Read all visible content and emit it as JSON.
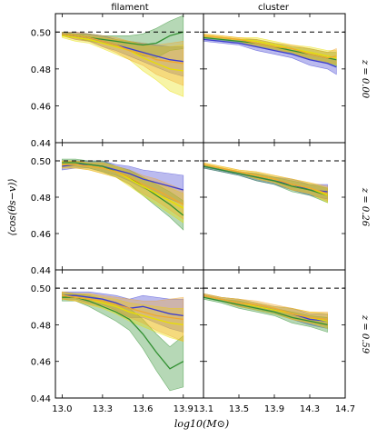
{
  "figure": {
    "column_titles": [
      "filament",
      "cluster"
    ],
    "row_labels": [
      "z = 0.00",
      "z = 0.26",
      "z = 0.59"
    ],
    "ylabel": "⟨cos(θs−v)⟩",
    "xlabel": "log10(M⊙)",
    "left_xticks": [
      "13.0",
      "13.3",
      "13.6",
      "13.9"
    ],
    "right_xticks": [
      "13.1",
      "13.5",
      "13.9",
      "14.3",
      "14.7"
    ],
    "yticks": [
      "0.44",
      "0.46",
      "0.48",
      "0.50"
    ],
    "colors": {
      "blue": "#3b3bd0",
      "green": "#2f8f2f",
      "yellow": "#e8e000",
      "orange": "#f0a830"
    }
  },
  "chart_data": [
    {
      "type": "line",
      "panel": "filament z=0.00",
      "xlim": [
        12.95,
        14.05
      ],
      "ylim": [
        0.44,
        0.51
      ],
      "reference_line": 0.5,
      "x": [
        13.0,
        13.1,
        13.2,
        13.3,
        13.4,
        13.5,
        13.6,
        13.7,
        13.8,
        13.9
      ],
      "series": [
        {
          "color": "blue",
          "values": [
            0.499,
            0.498,
            0.497,
            0.495,
            0.493,
            0.491,
            0.489,
            0.487,
            0.485,
            0.484
          ],
          "err": [
            0.001,
            0.002,
            0.002,
            0.003,
            0.003,
            0.004,
            0.005,
            0.006,
            0.007,
            0.008
          ]
        },
        {
          "color": "green",
          "values": [
            0.499,
            0.498,
            0.497,
            0.496,
            0.495,
            0.494,
            0.493,
            0.494,
            0.498,
            0.5
          ],
          "err": [
            0.001,
            0.001,
            0.002,
            0.002,
            0.003,
            0.004,
            0.006,
            0.008,
            0.008,
            0.009
          ]
        },
        {
          "color": "yellow",
          "values": [
            0.498,
            0.497,
            0.496,
            0.494,
            0.492,
            0.49,
            0.486,
            0.483,
            0.48,
            0.479
          ],
          "err": [
            0.001,
            0.002,
            0.002,
            0.003,
            0.004,
            0.005,
            0.007,
            0.009,
            0.012,
            0.014
          ]
        },
        {
          "color": "orange",
          "values": [
            0.499,
            0.498,
            0.497,
            0.495,
            0.493,
            0.49,
            0.488,
            0.485,
            0.484,
            0.483
          ],
          "err": [
            0.001,
            0.002,
            0.002,
            0.003,
            0.004,
            0.005,
            0.006,
            0.008,
            0.01,
            0.012
          ]
        }
      ]
    },
    {
      "type": "line",
      "panel": "cluster z=0.00",
      "xlim": [
        13.1,
        14.7
      ],
      "ylim": [
        0.44,
        0.51
      ],
      "reference_line": 0.5,
      "x": [
        13.1,
        13.3,
        13.5,
        13.7,
        13.9,
        14.1,
        14.3,
        14.5,
        14.6
      ],
      "series": [
        {
          "color": "blue",
          "values": [
            0.496,
            0.495,
            0.494,
            0.492,
            0.49,
            0.488,
            0.485,
            0.483,
            0.481
          ],
          "err": [
            0.001,
            0.001,
            0.001,
            0.002,
            0.002,
            0.002,
            0.003,
            0.003,
            0.004
          ]
        },
        {
          "color": "green",
          "values": [
            0.497,
            0.496,
            0.495,
            0.494,
            0.492,
            0.49,
            0.488,
            0.486,
            0.485
          ],
          "err": [
            0.001,
            0.001,
            0.001,
            0.002,
            0.002,
            0.002,
            0.003,
            0.003,
            0.004
          ]
        },
        {
          "color": "yellow",
          "values": [
            0.498,
            0.497,
            0.496,
            0.495,
            0.493,
            0.491,
            0.489,
            0.487,
            0.486
          ],
          "err": [
            0.001,
            0.001,
            0.001,
            0.002,
            0.002,
            0.002,
            0.003,
            0.003,
            0.004
          ]
        },
        {
          "color": "orange",
          "values": [
            0.498,
            0.497,
            0.496,
            0.494,
            0.492,
            0.491,
            0.488,
            0.486,
            0.487
          ],
          "err": [
            0.001,
            0.001,
            0.001,
            0.002,
            0.002,
            0.002,
            0.003,
            0.003,
            0.004
          ]
        }
      ]
    },
    {
      "type": "line",
      "panel": "filament z=0.26",
      "xlim": [
        12.95,
        14.05
      ],
      "ylim": [
        0.44,
        0.51
      ],
      "reference_line": 0.5,
      "x": [
        13.0,
        13.1,
        13.2,
        13.3,
        13.4,
        13.5,
        13.6,
        13.7,
        13.8,
        13.9
      ],
      "series": [
        {
          "color": "blue",
          "values": [
            0.497,
            0.498,
            0.498,
            0.497,
            0.495,
            0.493,
            0.49,
            0.488,
            0.486,
            0.484
          ],
          "err": [
            0.002,
            0.002,
            0.002,
            0.003,
            0.003,
            0.004,
            0.005,
            0.006,
            0.007,
            0.008
          ]
        },
        {
          "color": "green",
          "values": [
            0.499,
            0.499,
            0.498,
            0.497,
            0.494,
            0.491,
            0.486,
            0.481,
            0.476,
            0.47
          ],
          "err": [
            0.002,
            0.002,
            0.002,
            0.003,
            0.003,
            0.004,
            0.005,
            0.006,
            0.007,
            0.008
          ]
        },
        {
          "color": "yellow",
          "values": [
            0.498,
            0.498,
            0.497,
            0.496,
            0.494,
            0.49,
            0.486,
            0.482,
            0.478,
            0.474
          ],
          "err": [
            0.002,
            0.002,
            0.002,
            0.003,
            0.003,
            0.004,
            0.005,
            0.006,
            0.007,
            0.008
          ]
        },
        {
          "color": "orange",
          "values": [
            0.498,
            0.498,
            0.497,
            0.496,
            0.494,
            0.491,
            0.487,
            0.484,
            0.48,
            0.476
          ],
          "err": [
            0.002,
            0.002,
            0.002,
            0.003,
            0.003,
            0.004,
            0.005,
            0.006,
            0.007,
            0.008
          ]
        }
      ]
    },
    {
      "type": "line",
      "panel": "cluster z=0.26",
      "xlim": [
        13.1,
        14.7
      ],
      "ylim": [
        0.44,
        0.51
      ],
      "reference_line": 0.5,
      "x": [
        13.1,
        13.3,
        13.5,
        13.7,
        13.9,
        14.1,
        14.3,
        14.5
      ],
      "series": [
        {
          "color": "blue",
          "values": [
            0.497,
            0.495,
            0.493,
            0.491,
            0.489,
            0.487,
            0.484,
            0.483
          ],
          "err": [
            0.001,
            0.001,
            0.001,
            0.002,
            0.002,
            0.003,
            0.003,
            0.004
          ]
        },
        {
          "color": "green",
          "values": [
            0.497,
            0.495,
            0.493,
            0.491,
            0.489,
            0.486,
            0.484,
            0.481
          ],
          "err": [
            0.001,
            0.001,
            0.001,
            0.002,
            0.002,
            0.003,
            0.003,
            0.004
          ]
        },
        {
          "color": "yellow",
          "values": [
            0.498,
            0.496,
            0.494,
            0.492,
            0.49,
            0.487,
            0.485,
            0.481
          ],
          "err": [
            0.001,
            0.001,
            0.001,
            0.002,
            0.002,
            0.003,
            0.003,
            0.004
          ]
        },
        {
          "color": "orange",
          "values": [
            0.498,
            0.496,
            0.494,
            0.492,
            0.49,
            0.487,
            0.485,
            0.482
          ],
          "err": [
            0.001,
            0.001,
            0.001,
            0.002,
            0.002,
            0.003,
            0.003,
            0.004
          ]
        }
      ]
    },
    {
      "type": "line",
      "panel": "filament z=0.59",
      "xlim": [
        12.95,
        14.05
      ],
      "ylim": [
        0.44,
        0.51
      ],
      "reference_line": 0.5,
      "x": [
        13.0,
        13.1,
        13.2,
        13.3,
        13.4,
        13.5,
        13.6,
        13.7,
        13.8,
        13.9
      ],
      "series": [
        {
          "color": "blue",
          "values": [
            0.496,
            0.496,
            0.495,
            0.494,
            0.492,
            0.489,
            0.49,
            0.488,
            0.486,
            0.485
          ],
          "err": [
            0.002,
            0.002,
            0.003,
            0.003,
            0.004,
            0.005,
            0.006,
            0.007,
            0.008,
            0.009
          ]
        },
        {
          "color": "green",
          "values": [
            0.495,
            0.495,
            0.493,
            0.49,
            0.487,
            0.483,
            0.475,
            0.465,
            0.456,
            0.46
          ],
          "err": [
            0.002,
            0.002,
            0.003,
            0.004,
            0.005,
            0.006,
            0.008,
            0.01,
            0.012,
            0.014
          ]
        },
        {
          "color": "yellow",
          "values": [
            0.496,
            0.495,
            0.494,
            0.492,
            0.49,
            0.487,
            0.485,
            0.483,
            0.481,
            0.48
          ],
          "err": [
            0.002,
            0.002,
            0.003,
            0.003,
            0.004,
            0.005,
            0.006,
            0.007,
            0.008,
            0.009
          ]
        },
        {
          "color": "orange",
          "values": [
            0.496,
            0.495,
            0.494,
            0.493,
            0.491,
            0.489,
            0.487,
            0.485,
            0.484,
            0.483
          ],
          "err": [
            0.002,
            0.002,
            0.003,
            0.003,
            0.004,
            0.005,
            0.006,
            0.008,
            0.01,
            0.012
          ]
        }
      ]
    },
    {
      "type": "line",
      "panel": "cluster z=0.59",
      "xlim": [
        13.1,
        14.7
      ],
      "ylim": [
        0.44,
        0.51
      ],
      "reference_line": 0.5,
      "x": [
        13.1,
        13.3,
        13.5,
        13.7,
        13.9,
        14.1,
        14.3,
        14.5
      ],
      "series": [
        {
          "color": "blue",
          "values": [
            0.496,
            0.494,
            0.492,
            0.49,
            0.488,
            0.486,
            0.483,
            0.482
          ],
          "err": [
            0.001,
            0.001,
            0.002,
            0.002,
            0.002,
            0.003,
            0.003,
            0.004
          ]
        },
        {
          "color": "green",
          "values": [
            0.495,
            0.493,
            0.491,
            0.489,
            0.487,
            0.484,
            0.482,
            0.48
          ],
          "err": [
            0.001,
            0.001,
            0.002,
            0.002,
            0.002,
            0.003,
            0.003,
            0.004
          ]
        },
        {
          "color": "yellow",
          "values": [
            0.496,
            0.494,
            0.492,
            0.49,
            0.488,
            0.486,
            0.484,
            0.482
          ],
          "err": [
            0.001,
            0.001,
            0.002,
            0.002,
            0.002,
            0.003,
            0.003,
            0.004
          ]
        },
        {
          "color": "orange",
          "values": [
            0.496,
            0.494,
            0.492,
            0.491,
            0.489,
            0.486,
            0.484,
            0.483
          ],
          "err": [
            0.001,
            0.001,
            0.002,
            0.002,
            0.002,
            0.003,
            0.003,
            0.004
          ]
        }
      ]
    }
  ]
}
